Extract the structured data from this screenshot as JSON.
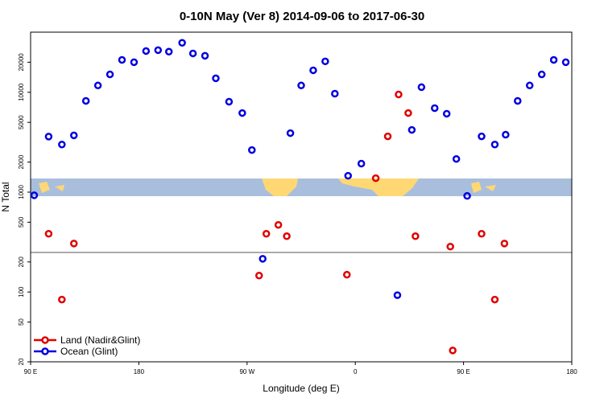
{
  "chart_data": {
    "type": "scatter",
    "title": "0-10N May (Ver 8)   2014-09-06 to 2017-06-30",
    "x_label": "Longitude (deg E)",
    "y_label": "N Total",
    "xlim": [
      90,
      540
    ],
    "ylim": [
      20,
      40000
    ],
    "ylog": true,
    "xticks": [
      {
        "value": 90,
        "label": "90 E"
      },
      180,
      {
        "value": 270,
        "label": "90 W"
      },
      {
        "value": 360,
        "label": "0"
      },
      {
        "value": 450,
        "label": "90 E"
      },
      {
        "value": 540,
        "label": "180"
      }
    ],
    "yticks": [
      20,
      50,
      100,
      200,
      500,
      1000,
      2000,
      5000,
      10000,
      20000
    ],
    "legend": "bottom-left",
    "series": [
      {
        "name": "Land (Nadir&Glint)",
        "color": "#e00000",
        "x": [
          105,
          116,
          126,
          280,
          286,
          296,
          303,
          353,
          377,
          387,
          396,
          404,
          410,
          439,
          441,
          465,
          476,
          484
        ],
        "values": [
          383,
          84,
          306,
          146,
          383,
          470,
          362,
          149,
          1380,
          3620,
          9510,
          6200,
          362,
          285,
          26,
          383,
          84,
          306
        ]
      },
      {
        "name": "Ocean (Glint)",
        "color": "#0000e0",
        "x": [
          93,
          105,
          116,
          126,
          136,
          146,
          156,
          166,
          176,
          186,
          196,
          205,
          216,
          225,
          235,
          244,
          255,
          266,
          274,
          283,
          306,
          315,
          325,
          335,
          343,
          354,
          365,
          395,
          407,
          415,
          426,
          436,
          444,
          453,
          465,
          476,
          485,
          495,
          505,
          515,
          525,
          535
        ],
        "values": [
          930,
          3600,
          3000,
          3700,
          8200,
          11700,
          15100,
          21100,
          20000,
          25900,
          26400,
          25500,
          31300,
          24500,
          23200,
          13800,
          8050,
          6200,
          2640,
          215,
          3900,
          11700,
          16600,
          20400,
          9690,
          1460,
          1930,
          93,
          4200,
          11250,
          6940,
          6100,
          2150,
          917,
          3620,
          3000,
          3760,
          8200,
          11700,
          15100,
          21100,
          20000
        ]
      }
    ]
  }
}
